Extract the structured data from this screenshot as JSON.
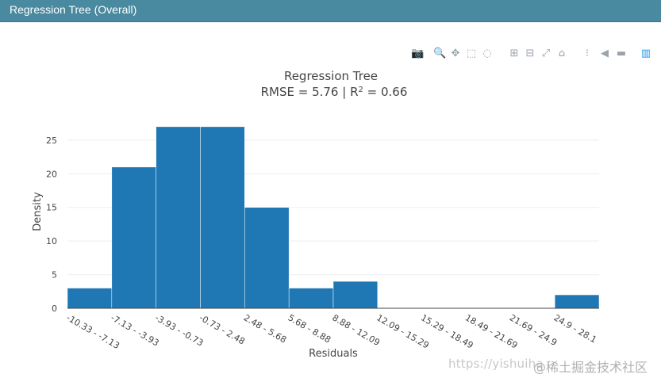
{
  "header": {
    "title": "Regression Tree (Overall)"
  },
  "toolbar": {
    "items": [
      {
        "name": "camera-icon",
        "glyph": "📷"
      },
      {
        "name": "zoom-icon",
        "glyph": "🔍"
      },
      {
        "name": "pan-icon",
        "glyph": "✥"
      },
      {
        "name": "box-select-icon",
        "glyph": "⬚"
      },
      {
        "name": "lasso-icon",
        "glyph": "◌"
      },
      {
        "name": "zoom-in-icon",
        "glyph": "⊞"
      },
      {
        "name": "zoom-out-icon",
        "glyph": "⊟"
      },
      {
        "name": "autoscale-icon",
        "glyph": "⤢"
      },
      {
        "name": "reset-axes-icon",
        "glyph": "⌂"
      },
      {
        "name": "spike-lines-icon",
        "glyph": "⁝"
      },
      {
        "name": "hover-closest-icon",
        "glyph": "◀"
      },
      {
        "name": "hover-compare-icon",
        "glyph": "▬"
      },
      {
        "name": "plotly-logo-icon",
        "glyph": "▥"
      }
    ]
  },
  "chart_data": {
    "type": "bar",
    "title_line1": "Regression Tree",
    "title_line2_prefix": "RMSE = 5.76 | R",
    "title_line2_sup": "2",
    "title_line2_suffix": " = 0.66",
    "xlabel": "Residuals",
    "ylabel": "Density",
    "categories": [
      "-10.33 - -7.13",
      "-7.13 - -3.93",
      "-3.93 - -0.73",
      "-0.73 - 2.48",
      "2.48 - 5.68",
      "5.68 - 8.88",
      "8.88 - 12.09",
      "12.09 - 15.29",
      "15.29 - 18.49",
      "18.49 - 21.69",
      "21.69 - 24.9",
      "24.9 - 28.1"
    ],
    "values": [
      3,
      21,
      27,
      27,
      15,
      3,
      4,
      0,
      0,
      0,
      0,
      2
    ],
    "ylim": [
      0,
      28.4
    ],
    "yticks": [
      0,
      5,
      10,
      15,
      20,
      25
    ],
    "grid": true,
    "bar_color": "#1f77b4"
  },
  "watermark": {
    "text1": "https://yishuiha",
    "text2": "@稀土掘金技术社区"
  }
}
